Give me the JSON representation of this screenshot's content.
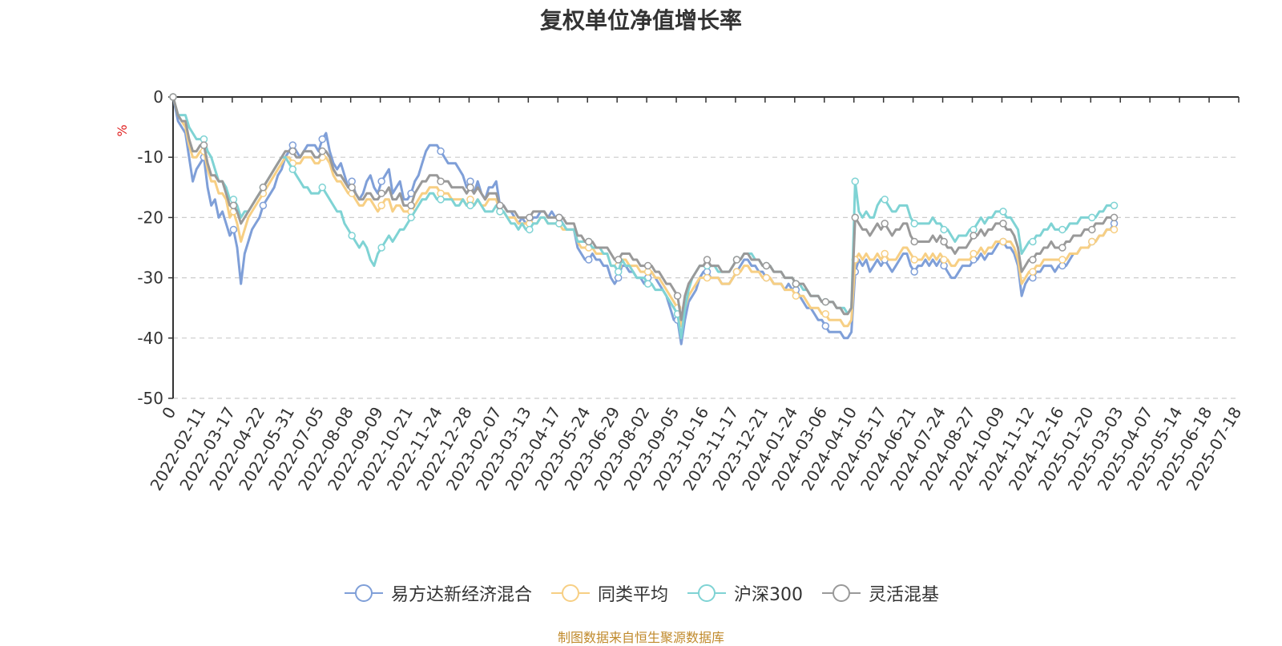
{
  "chart_data": {
    "type": "line",
    "title": "复权单位净值增长率",
    "ylabel": "%",
    "ylim": [
      -50,
      0
    ],
    "yticks": [
      0,
      -10,
      -20,
      -30,
      -40,
      -50
    ],
    "grid": true,
    "legend_position": "bottom",
    "x_ticks": [
      "0",
      "2022-02-11",
      "2022-03-17",
      "2022-04-22",
      "2022-05-31",
      "2022-07-05",
      "2022-08-08",
      "2022-09-09",
      "2022-10-21",
      "2022-11-24",
      "2022-12-28",
      "2023-02-07",
      "2023-03-13",
      "2023-04-17",
      "2023-05-24",
      "2023-06-29",
      "2023-08-02",
      "2023-09-05",
      "2023-10-16",
      "2023-11-17",
      "2023-12-21",
      "2024-01-24",
      "2024-03-06",
      "2024-04-10",
      "2024-05-17",
      "2024-06-21",
      "2024-07-24",
      "2024-08-27",
      "2024-10-09",
      "2024-11-12",
      "2024-12-16",
      "2025-01-20",
      "2025-03-03",
      "2025-04-07",
      "2025-05-14",
      "2025-06-18",
      "2025-07-18"
    ],
    "x_index": [
      0,
      4,
      7,
      10,
      13,
      16,
      19,
      22,
      25,
      28,
      31,
      34,
      37,
      40,
      43,
      46,
      49,
      52,
      55,
      58,
      61,
      64,
      67,
      70,
      73,
      76,
      79,
      82,
      85,
      88,
      91,
      94,
      97,
      100,
      103,
      106,
      109,
      112,
      115,
      118,
      121,
      124,
      127,
      130,
      133,
      136,
      139,
      142,
      145,
      148,
      151,
      154,
      157,
      160,
      163,
      166,
      169,
      172,
      175,
      178,
      181,
      184,
      187,
      190,
      193,
      196,
      199,
      202,
      205,
      208,
      211,
      214,
      217,
      220,
      223,
      226,
      229,
      232,
      235,
      238,
      241,
      244,
      247,
      250,
      253,
      256,
      259,
      262,
      265,
      268,
      271,
      274,
      277,
      280,
      283,
      286,
      289,
      292,
      295,
      298,
      301,
      304,
      307,
      310,
      313,
      316,
      319,
      322,
      325,
      328,
      331,
      334,
      337,
      340,
      343,
      346,
      349,
      352,
      355,
      358,
      361,
      364,
      367,
      370,
      373,
      376,
      379,
      382,
      385,
      388,
      391,
      394,
      397,
      400,
      403,
      406,
      409,
      412,
      415,
      418,
      421,
      424,
      427,
      430,
      433,
      436,
      439,
      442,
      445,
      448,
      451,
      454,
      457,
      460,
      463,
      466,
      469,
      472,
      475,
      478,
      481,
      484,
      487,
      490,
      493,
      496,
      499,
      502,
      505,
      508,
      511,
      514,
      517,
      520,
      523,
      526,
      529,
      532,
      535,
      538,
      541,
      544,
      547,
      550,
      553,
      556,
      559,
      562,
      565,
      568,
      571,
      574,
      577,
      580,
      583,
      586,
      589,
      592,
      595,
      598,
      601,
      604,
      607,
      610,
      613,
      616,
      619,
      622,
      625,
      628,
      631,
      634,
      637,
      640,
      643,
      646,
      649,
      652,
      655,
      658,
      661,
      664,
      667,
      670,
      673,
      676,
      679,
      682,
      685,
      688,
      691,
      694,
      697,
      700,
      703,
      706,
      709,
      712,
      715,
      718,
      721,
      724,
      727,
      730,
      733,
      736,
      739,
      742,
      745,
      748,
      751,
      754,
      757,
      760,
      763,
      766,
      769,
      772,
      775,
      778,
      781,
      784,
      787,
      790,
      793,
      796,
      799,
      802,
      805,
      808,
      811,
      814,
      817,
      820,
      823,
      826,
      829,
      832,
      835,
      838,
      841,
      844,
      847,
      850,
      853,
      856,
      859,
      862,
      864
    ],
    "series": [
      {
        "name": "易方达新经济混合",
        "color": "#7f9fd8",
        "values": [
          0,
          -4,
          -5,
          -6,
          -10,
          -14,
          -12,
          -11,
          -10,
          -15,
          -18,
          -17,
          -20,
          -19,
          -21,
          -23,
          -22,
          -25,
          -31,
          -26,
          -24,
          -22,
          -21,
          -20,
          -18,
          -17,
          -16,
          -15,
          -13,
          -12,
          -10,
          -9,
          -8,
          -9,
          -10,
          -9,
          -8,
          -8,
          -8,
          -9,
          -7,
          -6,
          -9,
          -11,
          -12,
          -11,
          -13,
          -15,
          -14,
          -16,
          -17,
          -16,
          -14,
          -13,
          -15,
          -16,
          -14,
          -13,
          -12,
          -16,
          -15,
          -14,
          -17,
          -17,
          -16,
          -14,
          -13,
          -11,
          -9,
          -8,
          -8,
          -8,
          -9,
          -10,
          -11,
          -11,
          -11,
          -12,
          -13,
          -15,
          -14,
          -16,
          -14,
          -16,
          -17,
          -15,
          -15,
          -14,
          -18,
          -18,
          -19,
          -19,
          -20,
          -21,
          -20,
          -21,
          -21,
          -20,
          -20,
          -19,
          -19,
          -20,
          -19,
          -20,
          -20,
          -21,
          -22,
          -22,
          -22,
          -25,
          -26,
          -27,
          -27,
          -26,
          -27,
          -27,
          -28,
          -28,
          -30,
          -31,
          -30,
          -28,
          -28,
          -29,
          -29,
          -30,
          -30,
          -31,
          -30,
          -29,
          -30,
          -31,
          -32,
          -33,
          -35,
          -37,
          -37,
          -41,
          -37,
          -34,
          -33,
          -32,
          -30,
          -29,
          -29,
          -30,
          -30,
          -30,
          -31,
          -31,
          -31,
          -30,
          -29,
          -28,
          -27,
          -27,
          -28,
          -28,
          -29,
          -29,
          -30,
          -30,
          -31,
          -31,
          -31,
          -32,
          -31,
          -32,
          -32,
          -33,
          -34,
          -35,
          -35,
          -36,
          -37,
          -37,
          -38,
          -39,
          -39,
          -39,
          -39,
          -40,
          -40,
          -39,
          -29,
          -27,
          -28,
          -27,
          -29,
          -28,
          -27,
          -28,
          -27,
          -28,
          -29,
          -28,
          -27,
          -26,
          -26,
          -28,
          -29,
          -28,
          -28,
          -27,
          -28,
          -27,
          -28,
          -27,
          -28,
          -29,
          -30,
          -30,
          -29,
          -28,
          -28,
          -28,
          -27,
          -27,
          -26,
          -27,
          -26,
          -26,
          -25,
          -24,
          -24,
          -25,
          -25,
          -26,
          -28,
          -33,
          -31,
          -30,
          -30,
          -29,
          -29,
          -28,
          -28,
          -28,
          -29,
          -28,
          -28,
          -28,
          -27,
          -26,
          -26,
          -25,
          -25,
          -25,
          -24,
          -24,
          -23,
          -23,
          -22,
          -22,
          -21
        ]
      },
      {
        "name": "同类平均",
        "color": "#f7cf84",
        "values": [
          0,
          -3,
          -4,
          -5,
          -8,
          -10,
          -10,
          -9,
          -9,
          -12,
          -14,
          -14,
          -16,
          -16,
          -17,
          -20,
          -19,
          -21,
          -24,
          -22,
          -20,
          -19,
          -18,
          -17,
          -16,
          -15,
          -14,
          -13,
          -12,
          -11,
          -10,
          -10,
          -11,
          -11,
          -11,
          -10,
          -10,
          -10,
          -11,
          -11,
          -10,
          -10,
          -11,
          -13,
          -14,
          -14,
          -15,
          -16,
          -16,
          -17,
          -18,
          -18,
          -17,
          -17,
          -18,
          -19,
          -18,
          -17,
          -17,
          -19,
          -18,
          -18,
          -19,
          -19,
          -19,
          -18,
          -17,
          -16,
          -16,
          -15,
          -15,
          -15,
          -16,
          -16,
          -16,
          -17,
          -17,
          -17,
          -17,
          -18,
          -17,
          -18,
          -17,
          -18,
          -18,
          -17,
          -17,
          -17,
          -19,
          -19,
          -20,
          -20,
          -20,
          -21,
          -21,
          -21,
          -21,
          -21,
          -21,
          -20,
          -20,
          -21,
          -21,
          -21,
          -21,
          -22,
          -22,
          -22,
          -22,
          -24,
          -25,
          -25,
          -25,
          -25,
          -26,
          -26,
          -26,
          -26,
          -28,
          -28,
          -28,
          -27,
          -27,
          -28,
          -28,
          -28,
          -29,
          -29,
          -29,
          -29,
          -30,
          -30,
          -31,
          -32,
          -33,
          -34,
          -35,
          -38,
          -35,
          -33,
          -32,
          -31,
          -30,
          -30,
          -30,
          -30,
          -30,
          -30,
          -31,
          -31,
          -31,
          -30,
          -29,
          -29,
          -28,
          -28,
          -29,
          -29,
          -29,
          -30,
          -30,
          -30,
          -31,
          -31,
          -31,
          -32,
          -32,
          -32,
          -33,
          -33,
          -33,
          -34,
          -35,
          -35,
          -35,
          -36,
          -36,
          -37,
          -37,
          -37,
          -37,
          -38,
          -38,
          -37,
          -27,
          -26,
          -27,
          -26,
          -27,
          -27,
          -26,
          -27,
          -26,
          -27,
          -27,
          -27,
          -26,
          -25,
          -25,
          -26,
          -27,
          -27,
          -27,
          -26,
          -27,
          -26,
          -27,
          -26,
          -27,
          -27,
          -28,
          -28,
          -27,
          -27,
          -27,
          -27,
          -26,
          -26,
          -25,
          -26,
          -25,
          -25,
          -24,
          -24,
          -24,
          -24,
          -24,
          -25,
          -27,
          -31,
          -30,
          -29,
          -29,
          -28,
          -28,
          -27,
          -27,
          -27,
          -27,
          -27,
          -27,
          -27,
          -26,
          -26,
          -26,
          -25,
          -25,
          -25,
          -24,
          -24,
          -23,
          -23,
          -22,
          -22,
          -22
        ]
      },
      {
        "name": "沪深300",
        "color": "#7fd3d4",
        "values": [
          0,
          -3,
          -3,
          -3,
          -5,
          -6,
          -7,
          -7,
          -7,
          -9,
          -10,
          -12,
          -14,
          -14,
          -15,
          -17,
          -17,
          -18,
          -20,
          -19,
          -19,
          -18,
          -17,
          -16,
          -15,
          -14,
          -13,
          -12,
          -11,
          -10,
          -10,
          -11,
          -12,
          -13,
          -14,
          -15,
          -15,
          -16,
          -16,
          -16,
          -15,
          -16,
          -17,
          -18,
          -19,
          -19,
          -21,
          -22,
          -23,
          -24,
          -25,
          -24,
          -25,
          -27,
          -28,
          -26,
          -25,
          -24,
          -23,
          -24,
          -23,
          -22,
          -22,
          -21,
          -20,
          -19,
          -18,
          -17,
          -17,
          -16,
          -16,
          -17,
          -17,
          -17,
          -17,
          -17,
          -18,
          -18,
          -17,
          -18,
          -18,
          -18,
          -17,
          -18,
          -19,
          -19,
          -19,
          -18,
          -19,
          -19,
          -20,
          -21,
          -21,
          -22,
          -21,
          -22,
          -22,
          -21,
          -21,
          -20,
          -20,
          -21,
          -21,
          -21,
          -21,
          -21,
          -22,
          -22,
          -22,
          -24,
          -24,
          -24,
          -24,
          -25,
          -25,
          -25,
          -26,
          -26,
          -28,
          -28,
          -29,
          -27,
          -28,
          -28,
          -29,
          -30,
          -30,
          -30,
          -31,
          -31,
          -32,
          -32,
          -32,
          -33,
          -34,
          -35,
          -36,
          -40,
          -35,
          -32,
          -30,
          -29,
          -28,
          -28,
          -28,
          -28,
          -28,
          -29,
          -29,
          -29,
          -29,
          -28,
          -27,
          -27,
          -26,
          -26,
          -26,
          -27,
          -27,
          -28,
          -28,
          -28,
          -29,
          -29,
          -29,
          -30,
          -30,
          -30,
          -31,
          -31,
          -32,
          -32,
          -33,
          -33,
          -33,
          -34,
          -34,
          -34,
          -34,
          -35,
          -35,
          -35,
          -36,
          -35,
          -14,
          -19,
          -20,
          -19,
          -20,
          -20,
          -18,
          -17,
          -17,
          -18,
          -19,
          -19,
          -18,
          -18,
          -18,
          -20,
          -21,
          -21,
          -21,
          -21,
          -21,
          -20,
          -21,
          -21,
          -22,
          -22,
          -23,
          -24,
          -23,
          -23,
          -23,
          -22,
          -22,
          -21,
          -20,
          -21,
          -20,
          -20,
          -19,
          -19,
          -19,
          -20,
          -20,
          -21,
          -22,
          -26,
          -25,
          -24,
          -24,
          -23,
          -23,
          -22,
          -22,
          -21,
          -22,
          -22,
          -22,
          -22,
          -21,
          -21,
          -21,
          -20,
          -20,
          -20,
          -20,
          -20,
          -19,
          -19,
          -18,
          -18,
          -18
        ]
      },
      {
        "name": "灵活混基",
        "color": "#999999",
        "values": [
          0,
          -3,
          -4,
          -4,
          -7,
          -9,
          -9,
          -8,
          -8,
          -11,
          -13,
          -13,
          -14,
          -14,
          -16,
          -18,
          -18,
          -19,
          -21,
          -20,
          -19,
          -18,
          -17,
          -16,
          -15,
          -14,
          -13,
          -12,
          -11,
          -10,
          -9,
          -9,
          -9,
          -10,
          -10,
          -9,
          -9,
          -9,
          -10,
          -10,
          -9,
          -9,
          -10,
          -12,
          -13,
          -13,
          -14,
          -15,
          -15,
          -16,
          -17,
          -17,
          -16,
          -16,
          -17,
          -17,
          -16,
          -16,
          -15,
          -17,
          -17,
          -16,
          -18,
          -18,
          -18,
          -16,
          -15,
          -14,
          -14,
          -13,
          -13,
          -13,
          -14,
          -14,
          -14,
          -15,
          -15,
          -15,
          -15,
          -16,
          -15,
          -16,
          -15,
          -16,
          -17,
          -16,
          -16,
          -16,
          -18,
          -18,
          -19,
          -19,
          -19,
          -20,
          -20,
          -20,
          -20,
          -19,
          -19,
          -19,
          -19,
          -20,
          -20,
          -20,
          -20,
          -20,
          -21,
          -21,
          -21,
          -23,
          -23,
          -24,
          -24,
          -24,
          -25,
          -25,
          -25,
          -25,
          -26,
          -27,
          -27,
          -26,
          -26,
          -26,
          -27,
          -27,
          -28,
          -28,
          -28,
          -28,
          -29,
          -29,
          -30,
          -31,
          -31,
          -32,
          -33,
          -37,
          -33,
          -31,
          -30,
          -29,
          -28,
          -28,
          -27,
          -28,
          -28,
          -28,
          -29,
          -29,
          -29,
          -28,
          -27,
          -27,
          -26,
          -26,
          -27,
          -27,
          -27,
          -28,
          -28,
          -28,
          -29,
          -29,
          -29,
          -30,
          -30,
          -30,
          -31,
          -31,
          -31,
          -32,
          -33,
          -33,
          -33,
          -34,
          -34,
          -34,
          -34,
          -35,
          -35,
          -36,
          -36,
          -35,
          -20,
          -21,
          -22,
          -22,
          -23,
          -22,
          -21,
          -22,
          -21,
          -22,
          -23,
          -22,
          -22,
          -21,
          -21,
          -23,
          -24,
          -24,
          -24,
          -24,
          -24,
          -23,
          -24,
          -23,
          -24,
          -25,
          -25,
          -26,
          -25,
          -25,
          -25,
          -24,
          -23,
          -23,
          -22,
          -23,
          -22,
          -22,
          -21,
          -21,
          -21,
          -22,
          -22,
          -23,
          -25,
          -29,
          -28,
          -27,
          -27,
          -26,
          -26,
          -25,
          -25,
          -24,
          -25,
          -25,
          -25,
          -24,
          -24,
          -23,
          -23,
          -23,
          -22,
          -22,
          -22,
          -21,
          -21,
          -21,
          -20,
          -20,
          -20
        ]
      }
    ]
  },
  "footer": "制图数据来自恒生聚源数据库"
}
